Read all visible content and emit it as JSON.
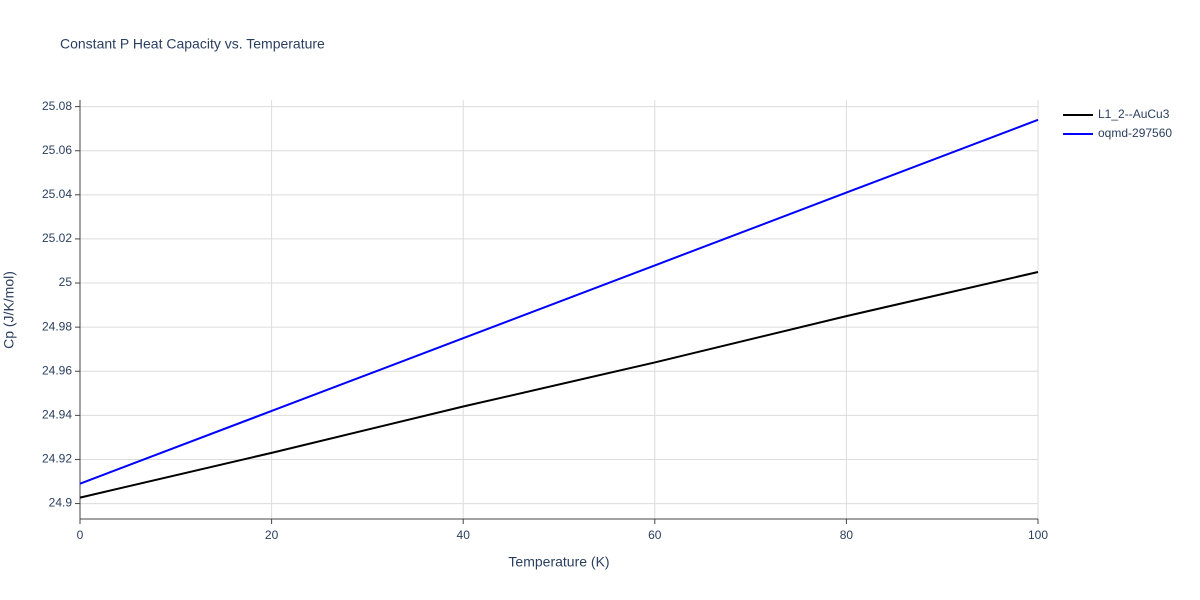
{
  "chart_data": {
    "type": "line",
    "title": "Constant P Heat Capacity vs. Temperature",
    "x_label": "Temperature (K)",
    "y_label": "Cp (J/K/mol)",
    "x": [
      0,
      20,
      40,
      60,
      80,
      100
    ],
    "series": [
      {
        "name": "L1_2--AuCu3",
        "color": "#000000",
        "values": [
          24.9027,
          24.923,
          24.944,
          24.964,
          24.985,
          25.005
        ]
      },
      {
        "name": "oqmd-297560",
        "color": "#0000ff",
        "values": [
          24.909,
          24.942,
          24.975,
          25.008,
          25.041,
          25.074
        ]
      }
    ],
    "xlim": [
      0,
      100
    ],
    "xticks": [
      0,
      20,
      40,
      60,
      80,
      100
    ],
    "ylim": [
      24.893,
      25.083
    ],
    "yticks": [
      24.9,
      24.92,
      24.94,
      24.96,
      24.98,
      25,
      25.02,
      25.04,
      25.06,
      25.08
    ],
    "grid": true,
    "legend": "top-right"
  }
}
